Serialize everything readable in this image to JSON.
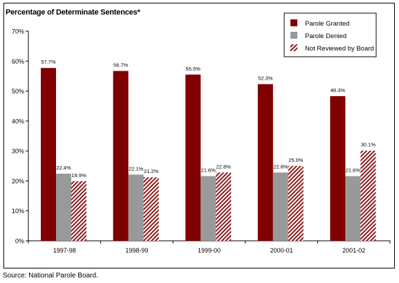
{
  "title": "Percentage of Determinate Sentences*",
  "source": "Source:  National Parole Board.",
  "chart_data": {
    "type": "bar",
    "title": "Percentage of Determinate Sentences*",
    "categories": [
      "1997-98",
      "1998-99",
      "1999-00",
      "2000-01",
      "2001-02"
    ],
    "series": [
      {
        "name": "Parole Granted",
        "values": [
          57.7,
          56.7,
          55.5,
          52.3,
          48.3
        ],
        "labels": [
          "57.7%",
          "56.7%",
          "55.5%",
          "52.3%",
          "48.3%"
        ],
        "color": "#800000"
      },
      {
        "name": "Parole Denied",
        "values": [
          22.4,
          22.1,
          21.6,
          22.8,
          21.6
        ],
        "labels": [
          "22.4%",
          "22.1%",
          "21.6%",
          "22.8%",
          "21.6%"
        ],
        "color": "#999999"
      },
      {
        "name": "Not Reviewed by Board",
        "values": [
          19.9,
          21.2,
          22.8,
          25.0,
          30.1
        ],
        "labels": [
          "19.9%",
          "21.2%",
          "22.8%",
          "25.0%",
          "30.1%"
        ],
        "color": "#8b1a1a",
        "pattern": "diagonal-hatch"
      }
    ],
    "yticks": [
      "0%",
      "10%",
      "20%",
      "30%",
      "40%",
      "50%",
      "60%",
      "70%"
    ],
    "ylim": [
      0,
      70
    ],
    "grid": false,
    "legend_position": "top-right"
  }
}
